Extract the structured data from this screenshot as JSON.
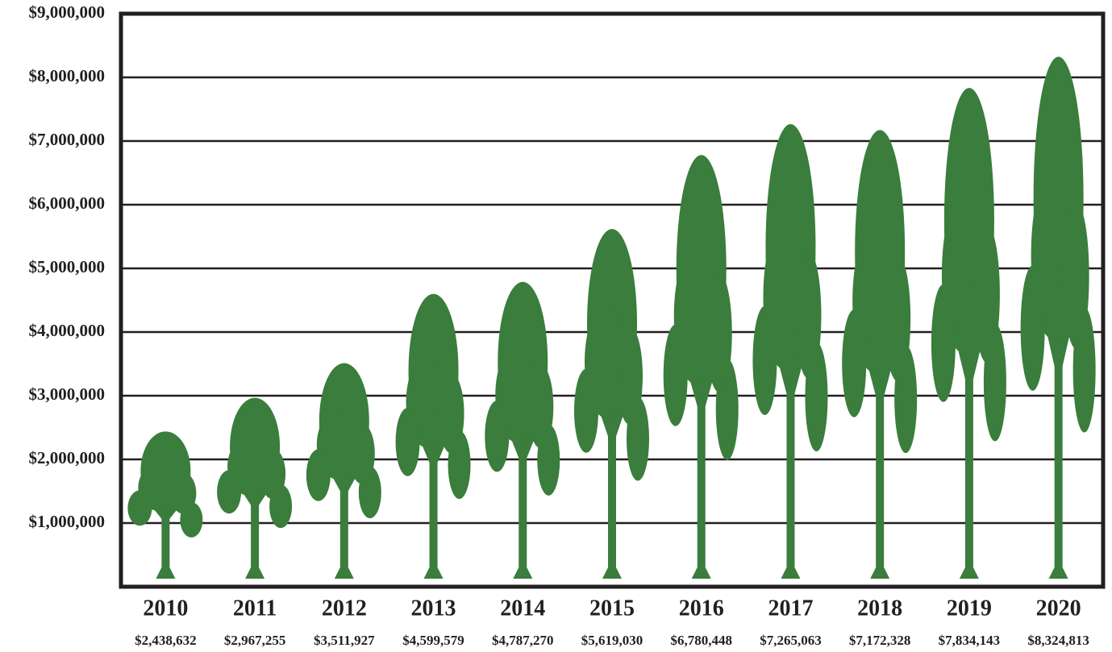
{
  "chart_data": {
    "type": "tree-pictograph",
    "categories": [
      "2010",
      "2011",
      "2012",
      "2013",
      "2014",
      "2015",
      "2016",
      "2017",
      "2018",
      "2019",
      "2020"
    ],
    "values": [
      2438632,
      2967255,
      3511927,
      4599579,
      4787270,
      5619030,
      6780448,
      7265063,
      7172328,
      7834143,
      8324813
    ],
    "value_labels": [
      "$2,438,632",
      "$2,967,255",
      "$3,511,927",
      "$4,599,579",
      "$4,787,270",
      "$5,619,030",
      "$6,780,448",
      "$7,265,063",
      "$7,172,328",
      "$7,834,143",
      "$8,324,813"
    ],
    "color": "#3a7d3c",
    "ylim": [
      0,
      9000000
    ],
    "yticks": [
      {
        "value": 1000000,
        "label": "$1,000,000"
      },
      {
        "value": 2000000,
        "label": "$2,000,000"
      },
      {
        "value": 3000000,
        "label": "$3,000,000"
      },
      {
        "value": 4000000,
        "label": "$4,000,000"
      },
      {
        "value": 5000000,
        "label": "$5,000,000"
      },
      {
        "value": 6000000,
        "label": "$6,000,000"
      },
      {
        "value": 7000000,
        "label": "$7,000,000"
      },
      {
        "value": 8000000,
        "label": "$8,000,000"
      },
      {
        "value": 9000000,
        "label": "$9,000,000"
      }
    ],
    "grid": true
  }
}
